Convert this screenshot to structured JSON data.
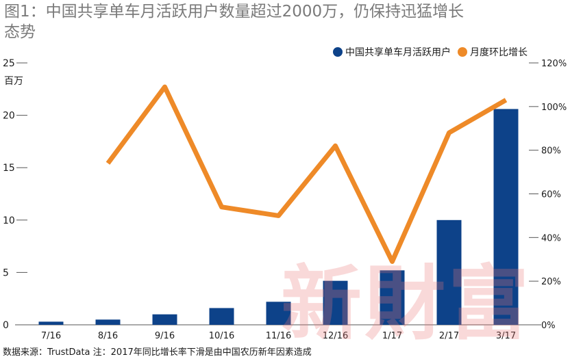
{
  "title": "图1：中国共享单车月活跃用户数量超过2000万，仍保持迅猛增长态势",
  "source_note": "数据来源：TrustData 注：2017年同比增长率下滑是由中国农历新年因素造成",
  "watermark": "新财富",
  "colors": {
    "bar": "#0d4289",
    "line": "#ee8a28",
    "title": "#7a7a7a",
    "axis": "#555555"
  },
  "chart_data": {
    "type": "bar",
    "title": "图1：中国共享单车月活跃用户数量超过2000万，仍保持迅猛增长态势",
    "categories": [
      "7/16",
      "8/16",
      "9/16",
      "10/16",
      "11/16",
      "12/16",
      "1/17",
      "2/17",
      "3/17"
    ],
    "y_unit": "百万",
    "ylim": [
      0,
      25
    ],
    "yticks": [
      0,
      5,
      10,
      15,
      20,
      25
    ],
    "y2lim": [
      0,
      120
    ],
    "y2ticks": [
      "0%",
      "20%",
      "40%",
      "60%",
      "80%",
      "100%",
      "120%"
    ],
    "y2tick_values": [
      0,
      20,
      40,
      60,
      80,
      100,
      120
    ],
    "series": [
      {
        "name": "中国共享单车月活跃用户",
        "kind": "bar",
        "axis": "left",
        "values": [
          0.3,
          0.5,
          1.0,
          1.6,
          2.2,
          4.2,
          5.2,
          10.0,
          20.6
        ]
      },
      {
        "name": "月度环比增长",
        "kind": "line",
        "axis": "right",
        "values": [
          null,
          74,
          109,
          54,
          50,
          82,
          29,
          88,
          103
        ]
      }
    ],
    "legend": "top-right"
  }
}
